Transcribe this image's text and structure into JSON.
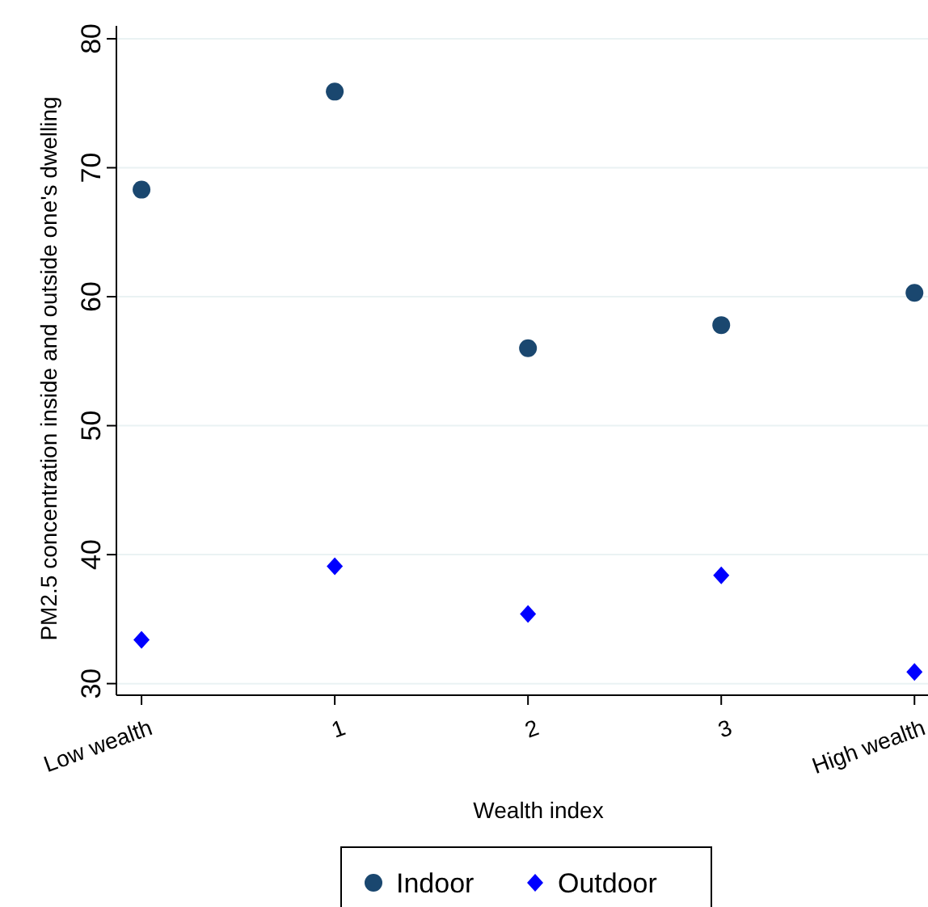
{
  "chart_data": {
    "type": "scatter",
    "xlabel": "Wealth index",
    "ylabel": "PM2.5 concentration inside and outside one's dwelling",
    "x": [
      0,
      1,
      2,
      3,
      4
    ],
    "series": [
      {
        "name": "Indoor",
        "color": "#1a476f",
        "marker": "circle",
        "values": [
          68.3,
          75.9,
          56.0,
          57.8,
          60.3
        ]
      },
      {
        "name": "Outdoor",
        "color": "#0000ff",
        "marker": "diamond",
        "values": [
          33.4,
          39.1,
          35.4,
          38.4,
          30.9
        ]
      }
    ],
    "xlim": [
      -0.13,
      4.07
    ],
    "xticks": [
      {
        "value": 0,
        "label": "Low wealth"
      },
      1,
      2,
      3,
      {
        "value": 4,
        "label": "High wealth"
      }
    ],
    "ylim": [
      29.1,
      81
    ],
    "yticks": [
      30,
      40,
      50,
      60,
      70,
      80
    ],
    "grid": "y",
    "legend": "bottom"
  }
}
